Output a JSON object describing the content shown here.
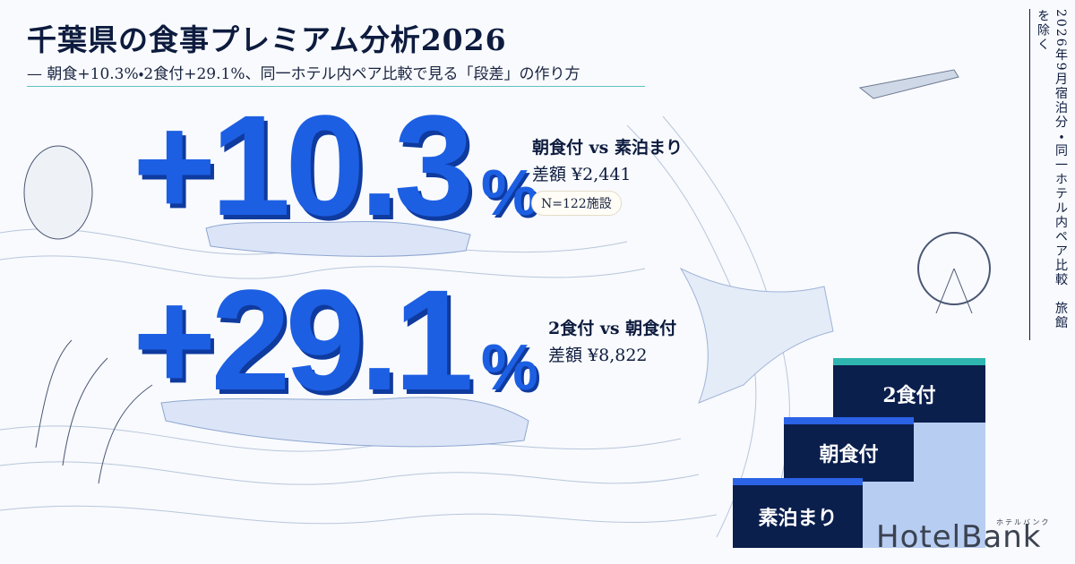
{
  "header": {
    "title": "千葉県の食事プレミアム分析2026",
    "subtitle": "— 朝食+10.3%・2食付+29.1%、同一ホテル内ペア比較で見る「段差」の作り方"
  },
  "stats": [
    {
      "value": "+10.3",
      "unit": "%",
      "comparison": "朝食付 vs 素泊まり",
      "difference": "差額 ¥2,441",
      "note": "N=122施設"
    },
    {
      "value": "+29.1",
      "unit": "%",
      "comparison": "2食付 vs 朝食付",
      "difference": "差額 ¥8,822"
    }
  ],
  "side_note": "2026年9月宿泊分・同一ホテル内ペア比較　旅館を除く",
  "stairs": [
    "素泊まり",
    "朝食付",
    "2食付"
  ],
  "logo": {
    "name": "HotelBank",
    "kana": "ホテルバンク"
  }
}
